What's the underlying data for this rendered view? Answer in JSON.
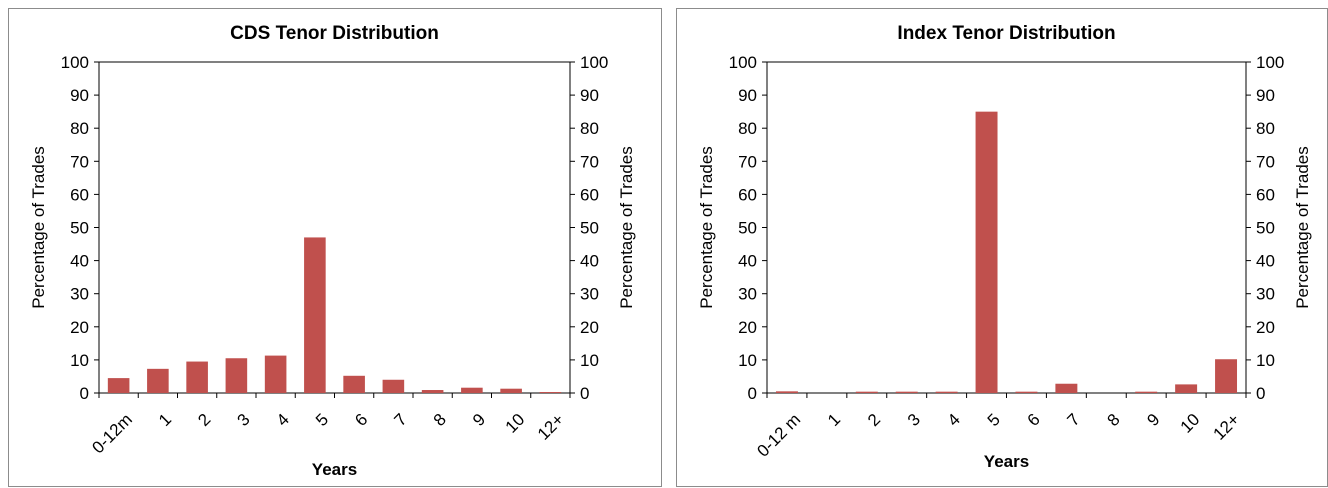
{
  "chart_data": [
    {
      "type": "bar",
      "title": "CDS Tenor Distribution",
      "xlabel": "Years",
      "ylabel": "Percentage of Trades",
      "y2label": "Percentage of Trades",
      "ylim": [
        0,
        100
      ],
      "yticks": [
        "0",
        "10",
        "20",
        "30",
        "40",
        "50",
        "60",
        "70",
        "80",
        "90",
        "100"
      ],
      "categories": [
        "0-12m",
        "1",
        "2",
        "3",
        "4",
        "5",
        "6",
        "7",
        "8",
        "9",
        "10",
        "12+"
      ],
      "values": [
        4.5,
        7.3,
        9.5,
        10.5,
        11.3,
        47.0,
        5.2,
        4.0,
        0.9,
        1.6,
        1.3,
        0.3
      ],
      "color": "#c0504d",
      "grid": false
    },
    {
      "type": "bar",
      "title": "Index Tenor Distribution",
      "xlabel": "Years",
      "ylabel": "Percentage of Trades",
      "y2label": "Percentage of Trades",
      "ylim": [
        0,
        100
      ],
      "yticks": [
        "0",
        "10",
        "20",
        "30",
        "40",
        "50",
        "60",
        "70",
        "80",
        "90",
        "100"
      ],
      "categories": [
        "0-12 m",
        "1",
        "2",
        "3",
        "4",
        "5",
        "6",
        "7",
        "8",
        "9",
        "10",
        "12+"
      ],
      "values": [
        0.5,
        0.0,
        0.4,
        0.4,
        0.4,
        85.0,
        0.4,
        2.8,
        0.0,
        0.4,
        2.6,
        10.2
      ],
      "color": "#c0504d",
      "grid": false
    }
  ]
}
